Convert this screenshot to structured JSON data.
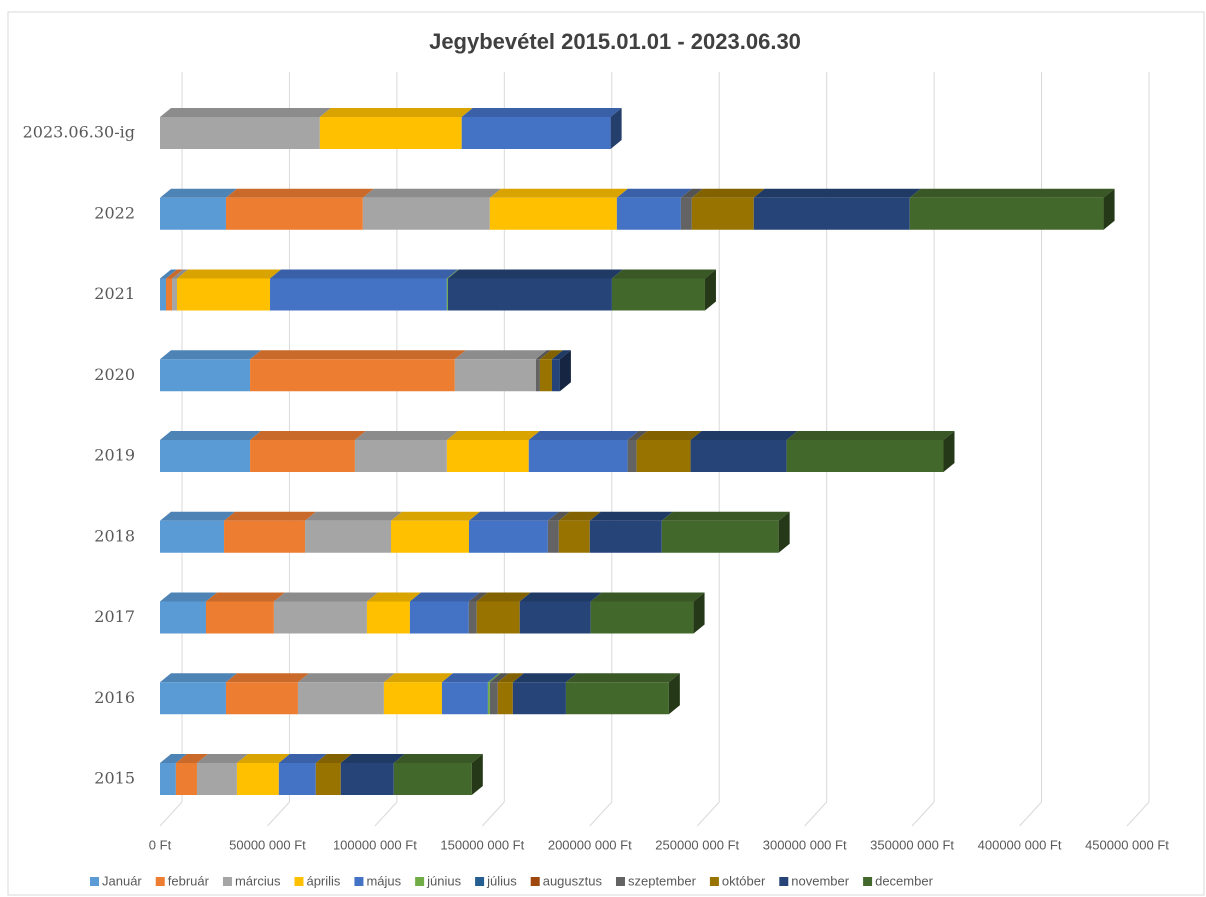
{
  "chart_data": {
    "type": "bar",
    "orientation": "horizontal",
    "stacked": true,
    "title": "Jegybevétel 2015.01.01 - 2023.06.30",
    "categories": [
      "2015",
      "2016",
      "2017",
      "2018",
      "2019",
      "2020",
      "2021",
      "2022",
      "2023.06.30-ig"
    ],
    "series": [
      {
        "name": "Január",
        "color": "#5b9bd5",
        "values": [
          7400000,
          30700000,
          21400000,
          29800000,
          41900000,
          41900000,
          2800000,
          30700000,
          0
        ]
      },
      {
        "name": "február",
        "color": "#ed7d31",
        "values": [
          9800000,
          33500000,
          31600000,
          37700000,
          48800000,
          95300000,
          2800000,
          63700000,
          0
        ]
      },
      {
        "name": "március",
        "color": "#a5a5a5",
        "values": [
          18600000,
          40000000,
          43300000,
          40000000,
          42800000,
          37700000,
          2300000,
          59100000,
          74400000
        ]
      },
      {
        "name": "április",
        "color": "#ffc000",
        "values": [
          19500000,
          27000000,
          20000000,
          36300000,
          38100000,
          0,
          43300000,
          59100000,
          66000000
        ]
      },
      {
        "name": "május",
        "color": "#4472c4",
        "values": [
          17200000,
          21400000,
          27400000,
          36700000,
          46000000,
          0,
          82300000,
          29800000,
          69300000
        ]
      },
      {
        "name": "június",
        "color": "#70ad47",
        "values": [
          0,
          900000,
          0,
          0,
          0,
          0,
          500000,
          0,
          0
        ]
      },
      {
        "name": "július",
        "color": "#255e91",
        "values": [
          0,
          0,
          0,
          0,
          0,
          0,
          0,
          0,
          null
        ]
      },
      {
        "name": "augusztus",
        "color": "#9e480e",
        "values": [
          0,
          0,
          0,
          0,
          0,
          0,
          0,
          0,
          null
        ]
      },
      {
        "name": "szeptember",
        "color": "#636363",
        "values": [
          0,
          3700000,
          3700000,
          5100000,
          4200000,
          1900000,
          0,
          5100000,
          null
        ]
      },
      {
        "name": "október",
        "color": "#997300",
        "values": [
          11600000,
          7000000,
          20000000,
          14400000,
          25100000,
          5600000,
          0,
          28800000,
          null
        ]
      },
      {
        "name": "november",
        "color": "#264478",
        "values": [
          24700000,
          24700000,
          33000000,
          33500000,
          44700000,
          3700000,
          76300000,
          72600000,
          null
        ]
      },
      {
        "name": "december",
        "color": "#43682b",
        "values": [
          36300000,
          47900000,
          47900000,
          54400000,
          73000000,
          0,
          43300000,
          90200000,
          null
        ]
      }
    ],
    "xlim": [
      0,
      450000000
    ],
    "xticks": [
      {
        "value": 0,
        "label": "0 Ft"
      },
      {
        "value": 50000000,
        "label": "50000 000 Ft"
      },
      {
        "value": 100000000,
        "label": "100000 000 Ft"
      },
      {
        "value": 150000000,
        "label": "150000 000 Ft"
      },
      {
        "value": 200000000,
        "label": "200000 000 Ft"
      },
      {
        "value": 250000000,
        "label": "250000 000 Ft"
      },
      {
        "value": 300000000,
        "label": "300000 000 Ft"
      },
      {
        "value": 350000000,
        "label": "350000 000 Ft"
      },
      {
        "value": 400000000,
        "label": "400000 000 Ft"
      },
      {
        "value": 450000000,
        "label": "450000 000 Ft"
      }
    ],
    "grid": true,
    "legend": "bottom"
  }
}
